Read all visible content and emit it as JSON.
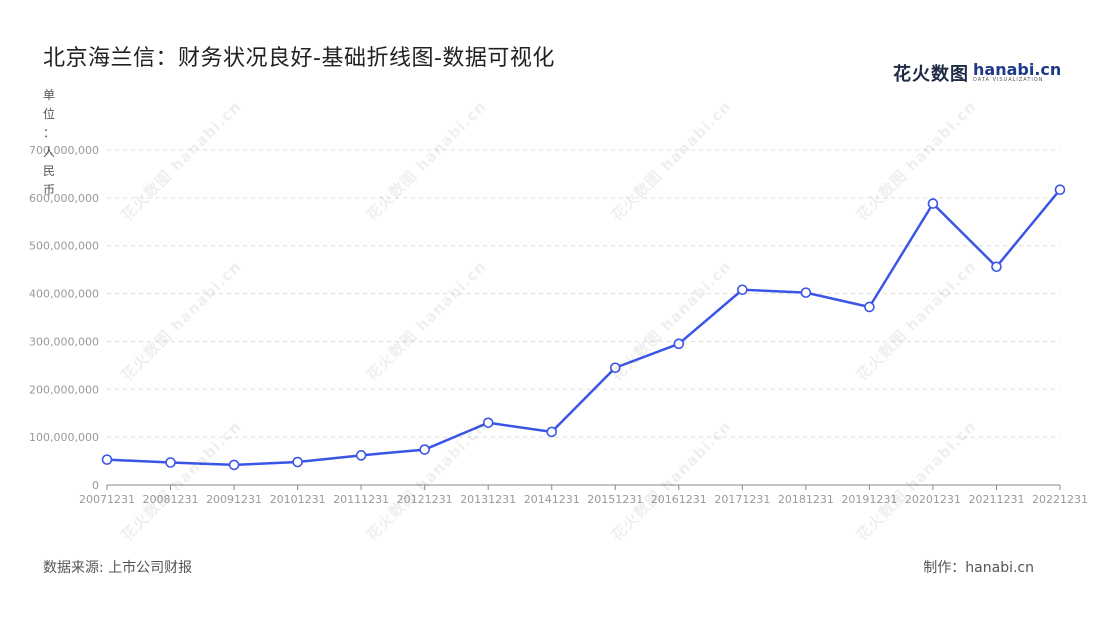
{
  "title": "北京海兰信：财务状况良好-基础折线图-数据可视化",
  "logo": {
    "cn": "花火数图",
    "en": "hanabi.cn",
    "sub": "DATA VISUALIZATION"
  },
  "ylabel_chars": [
    "单",
    "位",
    "：",
    "人",
    "民",
    "币"
  ],
  "footer": {
    "source": "数据来源: 上市公司财报",
    "credit": "制作：hanabi.cn"
  },
  "watermark": "花火数图 hanabi.cn",
  "colors": {
    "line": "#3b55e6",
    "grid": "#dddddd",
    "axis": "#888888",
    "tick": "#999999"
  },
  "chart_data": {
    "type": "line",
    "title": "北京海兰信：财务状况良好-基础折线图-数据可视化",
    "ylabel": "单位：人民币",
    "xlabel": "",
    "ylim": [
      0,
      700000000
    ],
    "yticks": [
      0,
      100000000,
      200000000,
      300000000,
      400000000,
      500000000,
      600000000,
      700000000
    ],
    "ytick_labels": [
      "0",
      "100,000,000",
      "200,000,000",
      "300,000,000",
      "400,000,000",
      "500,000,000",
      "600,000,000",
      "700,000,000"
    ],
    "grid": true,
    "categories": [
      "20071231",
      "20081231",
      "20091231",
      "20101231",
      "20111231",
      "20121231",
      "20131231",
      "20141231",
      "20151231",
      "20161231",
      "20171231",
      "20181231",
      "20191231",
      "20201231",
      "20211231",
      "20221231"
    ],
    "series": [
      {
        "values": [
          53000000,
          47000000,
          42000000,
          48000000,
          62000000,
          74000000,
          130000000,
          111000000,
          245000000,
          295000000,
          408000000,
          402000000,
          372000000,
          588000000,
          456000000,
          617000000
        ]
      }
    ]
  }
}
